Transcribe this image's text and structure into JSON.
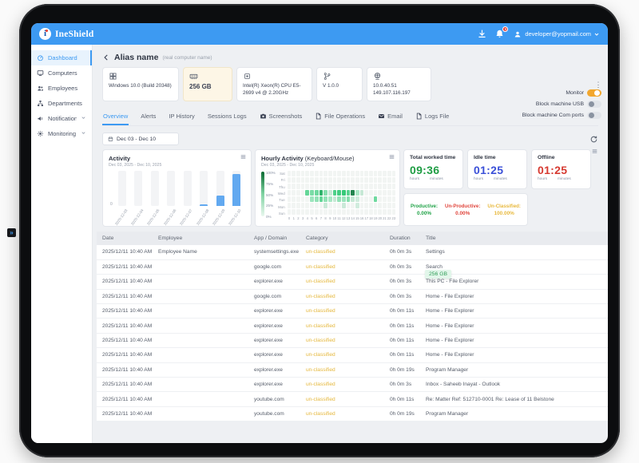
{
  "topbar": {
    "brand": "IneShield",
    "notification_badge": "9",
    "user_email": "developer@yopmail.com"
  },
  "sidebar": {
    "items": [
      {
        "label": "Dashboard",
        "icon": "dashboard-icon",
        "active": true,
        "expandable": false
      },
      {
        "label": "Computers",
        "icon": "computers-icon",
        "active": false,
        "expandable": false
      },
      {
        "label": "Employees",
        "icon": "employees-icon",
        "active": false,
        "expandable": false
      },
      {
        "label": "Departments",
        "icon": "departments-icon",
        "active": false,
        "expandable": false
      },
      {
        "label": "Notifications",
        "icon": "notifications-icon",
        "active": false,
        "expandable": true
      },
      {
        "label": "Monitoring",
        "icon": "monitoring-icon",
        "active": false,
        "expandable": true
      }
    ]
  },
  "header": {
    "title": "Alias name",
    "subtitle": "(real computer name)"
  },
  "info_cards": [
    {
      "icon": "windows-icon",
      "text": "Windows 10.0 (Build 20348)",
      "highlighted": false
    },
    {
      "icon": "ram-icon",
      "text": "256 GB",
      "highlighted": true
    },
    {
      "icon": "cpu-icon",
      "text": "Intel(R) Xeon(R) CPU E5-2699 v4 @ 2.20GHz",
      "highlighted": false
    },
    {
      "icon": "version-icon",
      "text": "V 1.0.0",
      "highlighted": false
    },
    {
      "icon": "ip-icon",
      "text": "10.0.40.51 149.107.116.197",
      "highlighted": false
    }
  ],
  "toggles": [
    {
      "label": "Monitor",
      "on": true
    },
    {
      "label": "Block machine USB",
      "on": false
    },
    {
      "label": "Block machine Com ports",
      "on": false
    }
  ],
  "tabs": [
    {
      "label": "Overview",
      "icon": null,
      "active": true
    },
    {
      "label": "Alerts",
      "icon": null,
      "active": false
    },
    {
      "label": "IP History",
      "icon": null,
      "active": false
    },
    {
      "label": "Sessions Logs",
      "icon": null,
      "active": false
    },
    {
      "label": "Screenshots",
      "icon": "camera-icon",
      "active": false
    },
    {
      "label": "File Operations",
      "icon": "file-icon",
      "active": false
    },
    {
      "label": "Email",
      "icon": "mail-icon",
      "active": false
    },
    {
      "label": "Logs File",
      "icon": "file-icon",
      "active": false
    }
  ],
  "filters": {
    "date_range": "Dec 03 - Dec 10"
  },
  "chart_data": [
    {
      "type": "bar",
      "title": "Activity",
      "subtitle": "Dec 03, 2025 - Dec 10, 2025",
      "categories": [
        "2025-12-03",
        "2025-12-04",
        "2025-12-05",
        "2025-12-06",
        "2025-12-07",
        "2025-12-08",
        "2025-12-09",
        "2025-12-10"
      ],
      "values": [
        0,
        0,
        0,
        0,
        0,
        4,
        30,
        92
      ],
      "xlabel": "",
      "ylabel": "",
      "ylim": [
        0,
        100
      ],
      "y_tick_labels": [
        "0"
      ],
      "bar_color": "#62a9f0",
      "legend_position": "none"
    },
    {
      "type": "heatmap",
      "title": "Hourly Activity",
      "title_suffix": "(Keyboard/Mouse)",
      "subtitle": "Dec 03, 2025 - Dec 10, 2025",
      "rows": [
        "Sat",
        "Fri",
        "Thu",
        "Wed",
        "Tue",
        "Mon",
        "Sun"
      ],
      "x": [
        0,
        1,
        2,
        3,
        4,
        5,
        6,
        7,
        8,
        9,
        10,
        11,
        12,
        13,
        14,
        15,
        16,
        17,
        18,
        19,
        20,
        21,
        22,
        23
      ],
      "values": [
        [
          0,
          0,
          0,
          0,
          0,
          0,
          0,
          0,
          0,
          0,
          0,
          0,
          0,
          0,
          0,
          0,
          0,
          0,
          0,
          0,
          0,
          0,
          0,
          0
        ],
        [
          0,
          0,
          0,
          0,
          0,
          0,
          0,
          0,
          0,
          0,
          0,
          0,
          0,
          0,
          0,
          0,
          0,
          0,
          0,
          0,
          0,
          0,
          0,
          0
        ],
        [
          0,
          0,
          0,
          0,
          0,
          0,
          0,
          0,
          0,
          0,
          0,
          0,
          0,
          0,
          0,
          0,
          0,
          0,
          0,
          0,
          0,
          0,
          0,
          0
        ],
        [
          0,
          0,
          0,
          0,
          50,
          40,
          45,
          80,
          35,
          10,
          60,
          65,
          70,
          55,
          100,
          20,
          10,
          0,
          0,
          0,
          0,
          0,
          0,
          0
        ],
        [
          0,
          0,
          0,
          0,
          0,
          25,
          30,
          50,
          30,
          20,
          10,
          30,
          25,
          35,
          10,
          5,
          0,
          0,
          0,
          45,
          0,
          0,
          0,
          0
        ],
        [
          0,
          0,
          0,
          0,
          0,
          0,
          0,
          0,
          8,
          0,
          0,
          0,
          8,
          0,
          0,
          5,
          0,
          0,
          0,
          0,
          0,
          0,
          0,
          0
        ],
        [
          0,
          0,
          0,
          0,
          0,
          0,
          0,
          0,
          0,
          0,
          0,
          0,
          0,
          0,
          0,
          0,
          0,
          0,
          0,
          0,
          0,
          0,
          0,
          0
        ]
      ],
      "legend_labels": [
        "100%",
        "75%",
        "50%",
        "25%",
        "0%"
      ],
      "legend_position": "left"
    }
  ],
  "summary_cards": [
    {
      "label": "Total worked time",
      "value": "09:36",
      "color": "#1f9d44",
      "units": [
        "hours",
        "minutes"
      ]
    },
    {
      "label": "Idle time",
      "value": "01:25",
      "color": "#3b50d8",
      "units": [
        "hours",
        "minutes"
      ]
    },
    {
      "label": "Offline",
      "value": "01:25",
      "color": "#d63a31",
      "units": [
        "hours",
        "minutes"
      ]
    }
  ],
  "classification": [
    {
      "label": "Productive:",
      "value": "0.00%",
      "color": "#21a348"
    },
    {
      "label": "Un-Productive:",
      "value": "0.00%",
      "color": "#e0453c"
    },
    {
      "label": "Un-Classified:",
      "value": "100.00%",
      "color": "#e8b93d"
    }
  ],
  "tooltip_badge": "256 GB",
  "table": {
    "columns": [
      "Date",
      "Employee",
      "App / Domain",
      "Category",
      "Duration",
      "Title"
    ],
    "rows": [
      [
        "2025/12/11 10:40 AM",
        "Employee  Name",
        "systemsettings.exe",
        "un-classified",
        "0h 0m 3s",
        "Settings"
      ],
      [
        "2025/12/11 10:40 AM",
        "",
        "google.com",
        "un-classified",
        "0h 0m 3s",
        "Search"
      ],
      [
        "2025/12/11 10:40 AM",
        "",
        "explorer.exe",
        "un-classified",
        "0h 0m 3s",
        "This PC - File Explorer"
      ],
      [
        "2025/12/11 10:40 AM",
        "",
        "google.com",
        "un-classified",
        "0h 0m 3s",
        "Home - File Explorer"
      ],
      [
        "2025/12/11 10:40 AM",
        "",
        "explorer.exe",
        "un-classified",
        "0h 0m 11s",
        "Home - File Explorer"
      ],
      [
        "2025/12/11 10:40 AM",
        "",
        "explorer.exe",
        "un-classified",
        "0h 0m 11s",
        "Home - File Explorer"
      ],
      [
        "2025/12/11 10:40 AM",
        "",
        "explorer.exe",
        "un-classified",
        "0h 0m 11s",
        "Home - File Explorer"
      ],
      [
        "2025/12/11 10:40 AM",
        "",
        "explorer.exe",
        "un-classified",
        "0h 0m 11s",
        "Home - File Explorer"
      ],
      [
        "2025/12/11 10:40 AM",
        "",
        "explorer.exe",
        "un-classified",
        "0h 0m 19s",
        "Program Manager"
      ],
      [
        "2025/12/11 10:40 AM",
        "",
        "explorer.exe",
        "un-classified",
        "0h 0m 3s",
        "Inbox - Saheeb Inayat - Outlook"
      ],
      [
        "2025/12/11 10:40 AM",
        "",
        "youtube.com",
        "un-classified",
        "0h 0m 11s",
        "Re: Matter Ref: 512710-0001 Re: Lease of 11 Belstone"
      ],
      [
        "2025/12/11 10:40 AM",
        "",
        "youtube.com",
        "un-classified",
        "0h 0m 19s",
        "Program Manager"
      ]
    ]
  },
  "icons": {
    "back_arrow": "←",
    "dots_vertical": "⋮",
    "expand_handle": "»"
  }
}
